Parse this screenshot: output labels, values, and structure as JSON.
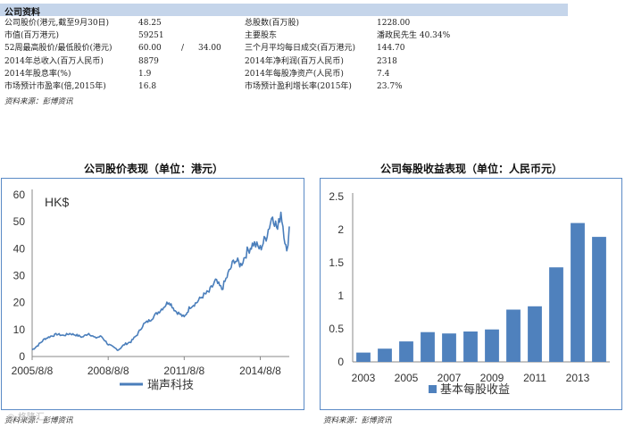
{
  "company_info": {
    "title": "公司资料",
    "rows": [
      {
        "l1": "公司股价(港元,截至9月30日)",
        "v1": "48.25",
        "v1b": "",
        "v1c": "",
        "l2": "总股数(百万股)",
        "v2": "1228.00"
      },
      {
        "l1": "市值(百万港元)",
        "v1": "59251",
        "v1b": "",
        "v1c": "",
        "l2": "主要股东",
        "v2": "潘政民先生 40.34%"
      },
      {
        "l1": "52周最高股价/最低股价(港元)",
        "v1": "60.00",
        "v1b": "/",
        "v1c": "34.00",
        "l2": "三个月平均每日成交(百万港元)",
        "v2": "144.70"
      },
      {
        "l1": "2014年总收入(百万人民币)",
        "v1": "8879",
        "v1b": "",
        "v1c": "",
        "l2": "2014年净利润(百万人民币)",
        "v2": "2318"
      },
      {
        "l1": "2014年股息率(%)",
        "v1": "1.9",
        "v1b": "",
        "v1c": "",
        "l2": "2014年每股净资产(人民币)",
        "v2": "7.4"
      },
      {
        "l1": "市场预计市盈率(倍,2015年)",
        "v1": "16.8",
        "v1b": "",
        "v1c": "",
        "l2": "市场预计盈利增长率(2015年)",
        "v2": "23.7%"
      }
    ],
    "source": "资料来源：彭博资讯"
  },
  "left_source": "资料来源：彭博资讯",
  "right_source": "资料来源：彭博资讯",
  "watermark": "◎ 格隆汇",
  "chart_data": [
    {
      "type": "line",
      "title": "公司股价表现（单位：港元）",
      "unit_label": "HK$",
      "ylim": [
        0,
        60
      ],
      "yticks": [
        0,
        10,
        20,
        30,
        40,
        50,
        60
      ],
      "xlim": [
        "2005-08-08",
        "2015-09-30"
      ],
      "xtick_labels": [
        "2005/8/8",
        "2008/8/8",
        "2011/8/8",
        "2014/8/8"
      ],
      "xtick_dates": [
        "2005-08-08",
        "2008-08-08",
        "2011-08-08",
        "2014-08-08"
      ],
      "series": [
        {
          "name": "瑞声科技",
          "color": "#4a7ebb",
          "x": [
            "2005-08-08",
            "2005-11-01",
            "2006-02-01",
            "2006-05-01",
            "2006-08-01",
            "2006-11-01",
            "2007-02-01",
            "2007-05-01",
            "2007-08-01",
            "2007-11-01",
            "2008-02-01",
            "2008-05-01",
            "2008-08-08",
            "2008-11-01",
            "2009-01-01",
            "2009-04-01",
            "2009-07-01",
            "2009-10-01",
            "2010-01-01",
            "2010-04-01",
            "2010-07-01",
            "2010-10-01",
            "2011-01-01",
            "2011-04-01",
            "2011-08-08",
            "2011-11-01",
            "2012-02-01",
            "2012-05-01",
            "2012-08-01",
            "2012-11-01",
            "2013-02-01",
            "2013-05-01",
            "2013-08-01",
            "2013-11-01",
            "2014-02-01",
            "2014-05-01",
            "2014-08-08",
            "2014-11-01",
            "2015-02-01",
            "2015-04-15",
            "2015-06-01",
            "2015-07-15",
            "2015-08-25",
            "2015-09-30"
          ],
          "values": [
            2.5,
            4.2,
            6.5,
            7.5,
            8.3,
            7.8,
            8.5,
            8.0,
            7.2,
            8.6,
            6.9,
            7.5,
            4.5,
            3.2,
            2.5,
            4.5,
            5.5,
            8.2,
            12.0,
            13.5,
            15.8,
            18.0,
            20.5,
            17.0,
            14.5,
            18.5,
            20.0,
            22.5,
            24.0,
            28.0,
            25.0,
            30.5,
            36.0,
            34.0,
            39.0,
            42.0,
            40.0,
            44.5,
            52.5,
            47.0,
            54.0,
            46.0,
            38.0,
            48.25
          ]
        }
      ]
    },
    {
      "type": "bar",
      "title": "公司每股收益表现（单位：人民币元）",
      "ylim": [
        0,
        2.5
      ],
      "yticks": [
        0,
        0.5,
        1,
        1.5,
        2,
        2.5
      ],
      "categories": [
        "2003",
        "2004",
        "2005",
        "2006",
        "2007",
        "2008",
        "2009",
        "2010",
        "2011",
        "2012",
        "2013",
        "2014"
      ],
      "xtick_labels": [
        "2003",
        "2005",
        "2007",
        "2009",
        "2011",
        "2013"
      ],
      "series": [
        {
          "name": "基本每股收益",
          "color": "#4f81bd",
          "values": [
            0.14,
            0.2,
            0.31,
            0.45,
            0.43,
            0.46,
            0.49,
            0.79,
            0.84,
            1.43,
            2.1,
            1.89
          ]
        }
      ]
    }
  ]
}
